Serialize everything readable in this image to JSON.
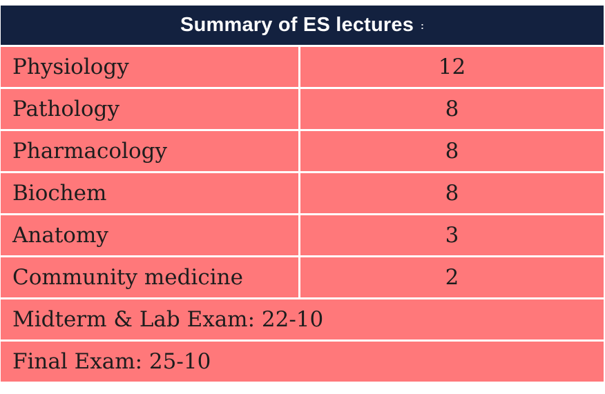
{
  "title": "Summary of ES lectures",
  "title_colon": ":",
  "rows": [
    {
      "subject": "Physiology",
      "count": "12"
    },
    {
      "subject": "Pathology",
      "count": "8"
    },
    {
      "subject": "Pharmacology",
      "count": "8"
    },
    {
      "subject": "Biochem",
      "count": "8"
    },
    {
      "subject": "Anatomy",
      "count": "3"
    },
    {
      "subject": "Community medicine",
      "count": "2"
    }
  ],
  "midterm": "Midterm & Lab Exam: 22-10",
  "final": "Final Exam: 25-10",
  "colors": {
    "header_bg": "#13213f",
    "row_bg": "#ff787a",
    "divider": "#ffffff"
  }
}
